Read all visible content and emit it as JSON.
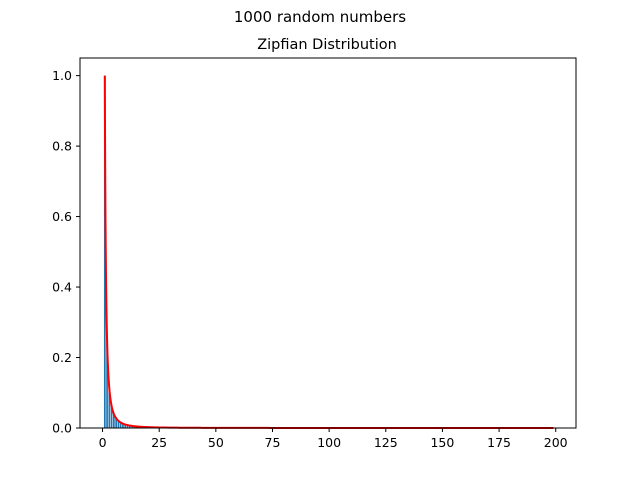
{
  "figure": {
    "suptitle": "1000 random numbers"
  },
  "chart_data": {
    "type": "bar",
    "title": "Zipfian Distribution",
    "xlabel": "",
    "ylabel": "",
    "xlim": [
      -9.95,
      208.95
    ],
    "ylim": [
      0,
      1.05
    ],
    "x_ticks": [
      "0",
      "25",
      "50",
      "75",
      "100",
      "125",
      "150",
      "175",
      "200"
    ],
    "y_ticks": [
      "0.0",
      "0.2",
      "0.4",
      "0.6",
      "0.8",
      "1.0"
    ],
    "grid": false,
    "series": [
      {
        "kind": "bar",
        "color": "#1f77b4",
        "x": [
          1,
          2,
          3,
          4,
          5,
          6,
          7,
          8,
          9,
          10,
          11,
          12,
          13,
          14,
          15,
          16,
          18,
          20
        ],
        "values": [
          1.0,
          0.25,
          0.11,
          0.065,
          0.04,
          0.028,
          0.02,
          0.016,
          0.012,
          0.01,
          0.008,
          0.007,
          0.006,
          0.005,
          0.004,
          0.004,
          0.003,
          0.0025
        ]
      },
      {
        "kind": "line",
        "color": "#ff0000",
        "formula": "1/x^2",
        "x_range": [
          1,
          199
        ]
      }
    ]
  }
}
